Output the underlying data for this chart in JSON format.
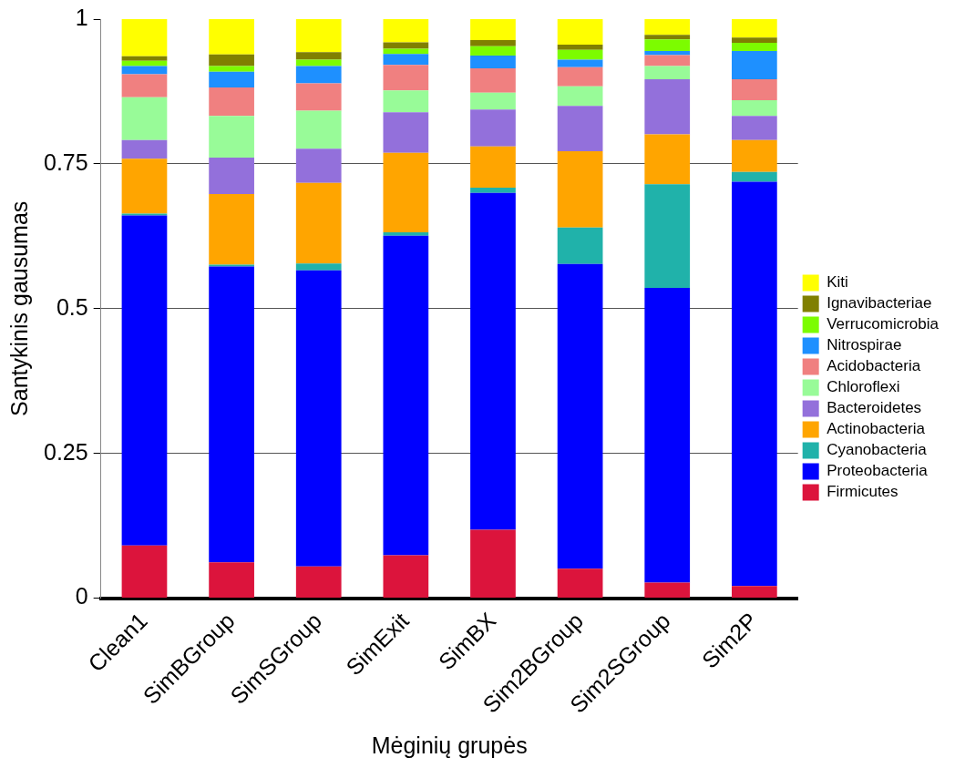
{
  "chart_data": {
    "type": "bar",
    "stacked": true,
    "xlabel": "Mėginių grupės",
    "ylabel": "Santykinis gausumas",
    "categories": [
      "Clean1",
      "SimBGroup",
      "SimSGroup",
      "SimExit",
      "SimBX",
      "Sim2BGroup",
      "Sim2SGroup",
      "Sim2P"
    ],
    "ylim": [
      0,
      1
    ],
    "yticks": [
      0,
      0.25,
      0.5,
      0.75,
      1
    ],
    "grid": "y",
    "legend": "right",
    "series": [
      {
        "name": "Firmicutes",
        "color": "#dc143c",
        "values": [
          0.091,
          0.062,
          0.055,
          0.074,
          0.118,
          0.051,
          0.027,
          0.021
        ]
      },
      {
        "name": "Proteobacteria",
        "color": "#0000ff",
        "values": [
          0.57,
          0.511,
          0.511,
          0.552,
          0.582,
          0.526,
          0.509,
          0.698
        ]
      },
      {
        "name": "Cyanobacteria",
        "color": "#20b2aa",
        "values": [
          0.003,
          0.003,
          0.012,
          0.006,
          0.009,
          0.063,
          0.179,
          0.017
        ]
      },
      {
        "name": "Actinobacteria",
        "color": "#ffa500",
        "values": [
          0.095,
          0.122,
          0.139,
          0.137,
          0.071,
          0.132,
          0.086,
          0.055
        ]
      },
      {
        "name": "Bacteroidetes",
        "color": "#9370db",
        "values": [
          0.032,
          0.063,
          0.059,
          0.07,
          0.064,
          0.078,
          0.095,
          0.042
        ]
      },
      {
        "name": "Chloroflexi",
        "color": "#98fb98",
        "values": [
          0.074,
          0.072,
          0.066,
          0.038,
          0.029,
          0.034,
          0.023,
          0.027
        ]
      },
      {
        "name": "Acidobacteria",
        "color": "#f08080",
        "values": [
          0.04,
          0.049,
          0.047,
          0.044,
          0.042,
          0.033,
          0.019,
          0.036
        ]
      },
      {
        "name": "Nitrospirae",
        "color": "#1e90ff",
        "values": [
          0.014,
          0.027,
          0.03,
          0.019,
          0.022,
          0.013,
          0.007,
          0.049
        ]
      },
      {
        "name": "Verrucomicrobia",
        "color": "#7cfc00",
        "values": [
          0.009,
          0.01,
          0.011,
          0.009,
          0.016,
          0.017,
          0.02,
          0.014
        ]
      },
      {
        "name": "Ignavibacteriae",
        "color": "#808000",
        "values": [
          0.008,
          0.02,
          0.013,
          0.011,
          0.011,
          0.009,
          0.008,
          0.009
        ]
      },
      {
        "name": "Kiti",
        "color": "#ffff00",
        "values": [
          0.064,
          0.061,
          0.057,
          0.04,
          0.036,
          0.044,
          0.027,
          0.032
        ]
      }
    ]
  }
}
